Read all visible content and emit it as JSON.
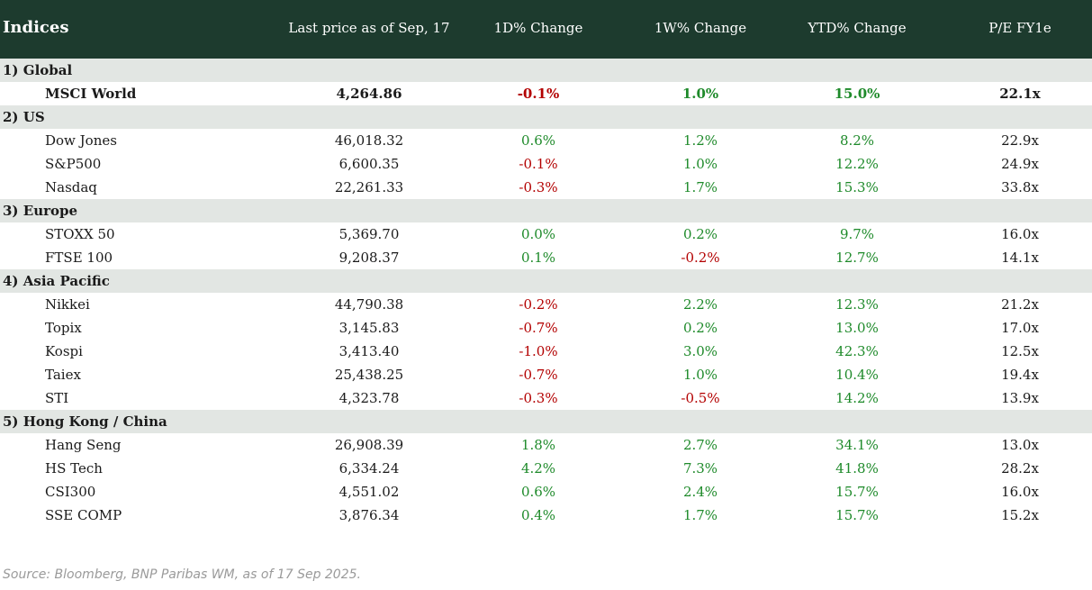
{
  "header": {
    "title": "Indices",
    "columns": {
      "price": "Last price as of Sep, 17",
      "d1": "1D% Change",
      "w1": "1W% Change",
      "ytd": "YTD% Change",
      "pe": "P/E FY1e"
    }
  },
  "sections": [
    {
      "label": "1) Global",
      "rows": [
        {
          "name": "MSCI World",
          "price": "4,264.86",
          "d1": "-0.1%",
          "w1": "1.0%",
          "ytd": "15.0%",
          "pe": "22.1x",
          "bold": true
        }
      ]
    },
    {
      "label": "2) US",
      "rows": [
        {
          "name": "Dow Jones",
          "price": "46,018.32",
          "d1": "0.6%",
          "w1": "1.2%",
          "ytd": "8.2%",
          "pe": "22.9x"
        },
        {
          "name": "S&P500",
          "price": "6,600.35",
          "d1": "-0.1%",
          "w1": "1.0%",
          "ytd": "12.2%",
          "pe": "24.9x"
        },
        {
          "name": "Nasdaq",
          "price": "22,261.33",
          "d1": "-0.3%",
          "w1": "1.7%",
          "ytd": "15.3%",
          "pe": "33.8x"
        }
      ]
    },
    {
      "label": "3) Europe",
      "rows": [
        {
          "name": "STOXX 50",
          "price": "5,369.70",
          "d1": "0.0%",
          "w1": "0.2%",
          "ytd": "9.7%",
          "pe": "16.0x"
        },
        {
          "name": "FTSE 100",
          "price": "9,208.37",
          "d1": "0.1%",
          "w1": "-0.2%",
          "ytd": "12.7%",
          "pe": "14.1x"
        }
      ]
    },
    {
      "label": "4) Asia Pacific",
      "rows": [
        {
          "name": "Nikkei",
          "price": "44,790.38",
          "d1": "-0.2%",
          "w1": "2.2%",
          "ytd": "12.3%",
          "pe": "21.2x"
        },
        {
          "name": "Topix",
          "price": "3,145.83",
          "d1": "-0.7%",
          "w1": "0.2%",
          "ytd": "13.0%",
          "pe": "17.0x"
        },
        {
          "name": "Kospi",
          "price": "3,413.40",
          "d1": "-1.0%",
          "w1": "3.0%",
          "ytd": "42.3%",
          "pe": "12.5x"
        },
        {
          "name": "Taiex",
          "price": "25,438.25",
          "d1": "-0.7%",
          "w1": "1.0%",
          "ytd": "10.4%",
          "pe": "19.4x"
        },
        {
          "name": "STI",
          "price": "4,323.78",
          "d1": "-0.3%",
          "w1": "-0.5%",
          "ytd": "14.2%",
          "pe": "13.9x"
        }
      ]
    },
    {
      "label": "5) Hong Kong / China",
      "rows": [
        {
          "name": "Hang Seng",
          "price": "26,908.39",
          "d1": "1.8%",
          "w1": "2.7%",
          "ytd": "34.1%",
          "pe": "13.0x"
        },
        {
          "name": "HS Tech",
          "price": "6,334.24",
          "d1": "4.2%",
          "w1": "7.3%",
          "ytd": "41.8%",
          "pe": "28.2x"
        },
        {
          "name": "CSI300",
          "price": "4,551.02",
          "d1": "0.6%",
          "w1": "2.4%",
          "ytd": "15.7%",
          "pe": "16.0x"
        },
        {
          "name": "SSE COMP",
          "price": "3,876.34",
          "d1": "0.4%",
          "w1": "1.7%",
          "ytd": "15.7%",
          "pe": "15.2x"
        }
      ]
    }
  ],
  "colors": {
    "header_bg": "#1d3b2e",
    "positive": "#1e8a2a",
    "negative": "#b30000",
    "group_bg": "#e2e6e3"
  },
  "source": "Source: Bloomberg, BNP Paribas WM, as of 17 Sep 2025."
}
